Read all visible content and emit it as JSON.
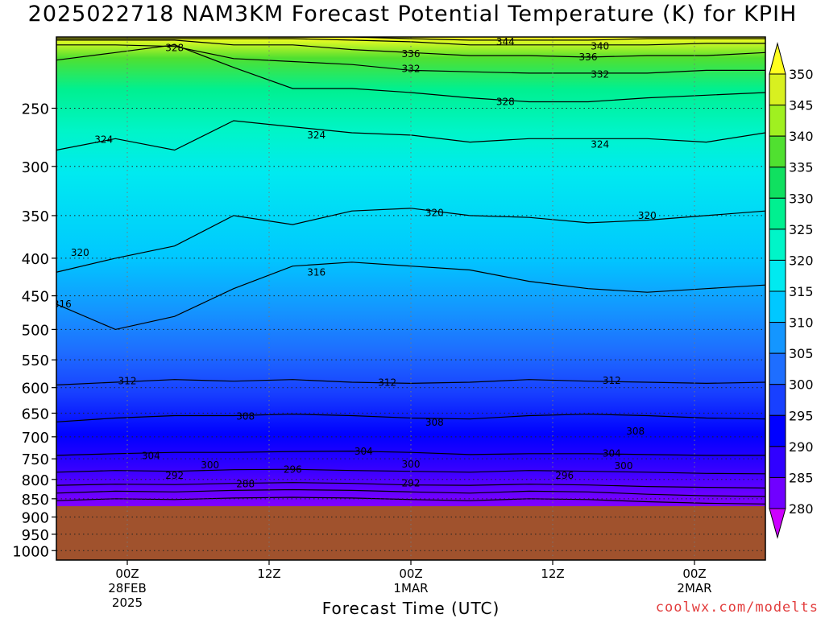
{
  "title": "2025022718 NAM3KM Forecast Potential Temperature (K) for KPIH",
  "credit": "coolwx.com/modelts",
  "colors": {
    "terrain": "#a0522d",
    "contour": "#000000",
    "colorbar": [
      "#cc00ff",
      "#a000ff",
      "#7000ff",
      "#3000ff",
      "#0000ff",
      "#1840ff",
      "#1e6eff",
      "#1496ff",
      "#00c8ff",
      "#00eaf0",
      "#00f5c8",
      "#00f090",
      "#10e060",
      "#50e030",
      "#a0f020",
      "#d8f020",
      "#ffff20"
    ]
  },
  "chart_data": {
    "type": "heatmap",
    "title": "2025022718 NAM3KM Forecast Potential Temperature (K) for KPIH",
    "xlabel": "Forecast Time (UTC)",
    "ylabel": "",
    "y_ticks": [
      "250",
      "300",
      "350",
      "400",
      "450",
      "500",
      "550",
      "600",
      "650",
      "700",
      "750",
      "800",
      "850",
      "900",
      "950",
      "1000"
    ],
    "y_values": [
      250,
      300,
      350,
      400,
      450,
      500,
      550,
      600,
      650,
      700,
      750,
      800,
      850,
      900,
      950,
      1000
    ],
    "ylim": [
      200,
      1030
    ],
    "x_ticks": [
      {
        "hour": 6,
        "line1": "00Z",
        "line2": "28FEB",
        "line3": "2025"
      },
      {
        "hour": 18,
        "line1": "12Z",
        "line2": "",
        "line3": ""
      },
      {
        "hour": 30,
        "line1": "00Z",
        "line2": "1MAR",
        "line3": ""
      },
      {
        "hour": 42,
        "line1": "12Z",
        "line2": "",
        "line3": ""
      },
      {
        "hour": 54,
        "line1": "00Z",
        "line2": "2MAR",
        "line3": ""
      }
    ],
    "xlim": [
      0,
      60
    ],
    "colorbar_levels": [
      280,
      285,
      290,
      295,
      300,
      305,
      310,
      315,
      320,
      325,
      330,
      335,
      340,
      345,
      350
    ],
    "colorbar_labels": [
      "280",
      "285",
      "290",
      "295",
      "300",
      "305",
      "310",
      "315",
      "320",
      "325",
      "330",
      "335",
      "340",
      "345",
      "350"
    ],
    "surface_pressure_hPa": 870,
    "isentropes": [
      {
        "theta": 288,
        "p": [
          855,
          850,
          852,
          848,
          846,
          848,
          852,
          855,
          850,
          852,
          858,
          862,
          864
        ]
      },
      {
        "theta": 292,
        "p": [
          835,
          830,
          832,
          828,
          826,
          828,
          832,
          835,
          830,
          832,
          838,
          842,
          844
        ]
      },
      {
        "theta": 296,
        "p": [
          815,
          812,
          813,
          810,
          808,
          810,
          814,
          815,
          812,
          814,
          818,
          820,
          822
        ]
      },
      {
        "theta": 300,
        "p": [
          782,
          778,
          780,
          776,
          775,
          778,
          780,
          782,
          778,
          780,
          782,
          785,
          786
        ]
      },
      {
        "theta": 304,
        "p": [
          742,
          738,
          735,
          735,
          733,
          732,
          735,
          740,
          738,
          738,
          740,
          742,
          742
        ]
      },
      {
        "theta": 308,
        "p": [
          668,
          660,
          655,
          655,
          652,
          655,
          660,
          662,
          655,
          652,
          655,
          660,
          662
        ]
      },
      {
        "theta": 312,
        "p": [
          595,
          590,
          585,
          588,
          585,
          590,
          592,
          590,
          585,
          588,
          590,
          592,
          590
        ]
      },
      {
        "theta": 316,
        "p": [
          462,
          500,
          480,
          440,
          410,
          405,
          410,
          415,
          430,
          440,
          445,
          440,
          435
        ]
      },
      {
        "theta": 320,
        "p": [
          418,
          400,
          385,
          350,
          360,
          345,
          342,
          350,
          352,
          358,
          355,
          350,
          345
        ]
      },
      {
        "theta": 324,
        "p": [
          285,
          275,
          285,
          260,
          265,
          270,
          272,
          278,
          275,
          275,
          275,
          278,
          270
        ]
      },
      {
        "theta": 328,
        "p": [
          215,
          210,
          205,
          220,
          235,
          235,
          238,
          242,
          245,
          245,
          242,
          240,
          238
        ]
      },
      {
        "theta": 332,
        "p": [
          205,
          205,
          206,
          214,
          216,
          218,
          222,
          223,
          224,
          224,
          224,
          222,
          222
        ]
      },
      {
        "theta": 336,
        "p": [
          202,
          202,
          202,
          205,
          205,
          208,
          210,
          212,
          212,
          213,
          212,
          212,
          210
        ]
      },
      {
        "theta": 340,
        "p": [
          201,
          201,
          201,
          201,
          201,
          202,
          203,
          205,
          205,
          205,
          205,
          204,
          204
        ]
      },
      {
        "theta": 344,
        "p": [
          200,
          200,
          200,
          200,
          200,
          200,
          201,
          202,
          202,
          202,
          201,
          201,
          201
        ]
      }
    ],
    "contour_labels": [
      {
        "text": "328",
        "hour": 10,
        "p": 207
      },
      {
        "text": "336",
        "hour": 30,
        "p": 211
      },
      {
        "text": "332",
        "hour": 30,
        "p": 221
      },
      {
        "text": "344",
        "hour": 38,
        "p": 203
      },
      {
        "text": "340",
        "hour": 46,
        "p": 206
      },
      {
        "text": "336",
        "hour": 45,
        "p": 213
      },
      {
        "text": "332",
        "hour": 46,
        "p": 225
      },
      {
        "text": "328",
        "hour": 38,
        "p": 245
      },
      {
        "text": "324",
        "hour": 4,
        "p": 276
      },
      {
        "text": "324",
        "hour": 22,
        "p": 272
      },
      {
        "text": "324",
        "hour": 46,
        "p": 280
      },
      {
        "text": "320",
        "hour": 2,
        "p": 393
      },
      {
        "text": "320",
        "hour": 32,
        "p": 347
      },
      {
        "text": "320",
        "hour": 50,
        "p": 350
      },
      {
        "text": "316",
        "hour": 0.5,
        "p": 462
      },
      {
        "text": "316",
        "hour": 22,
        "p": 418
      },
      {
        "text": "312",
        "hour": 6,
        "p": 588
      },
      {
        "text": "312",
        "hour": 28,
        "p": 591
      },
      {
        "text": "312",
        "hour": 47,
        "p": 587
      },
      {
        "text": "308",
        "hour": 16,
        "p": 657
      },
      {
        "text": "308",
        "hour": 32,
        "p": 669
      },
      {
        "text": "308",
        "hour": 49,
        "p": 688
      },
      {
        "text": "304",
        "hour": 8,
        "p": 743
      },
      {
        "text": "304",
        "hour": 26,
        "p": 733
      },
      {
        "text": "304",
        "hour": 47,
        "p": 737
      },
      {
        "text": "300",
        "hour": 13,
        "p": 765
      },
      {
        "text": "300",
        "hour": 30,
        "p": 763
      },
      {
        "text": "300",
        "hour": 48,
        "p": 767
      },
      {
        "text": "296",
        "hour": 20,
        "p": 776
      },
      {
        "text": "296",
        "hour": 43,
        "p": 790
      },
      {
        "text": "292",
        "hour": 10,
        "p": 790
      },
      {
        "text": "292",
        "hour": 30,
        "p": 810
      },
      {
        "text": "288",
        "hour": 16,
        "p": 812
      }
    ]
  }
}
